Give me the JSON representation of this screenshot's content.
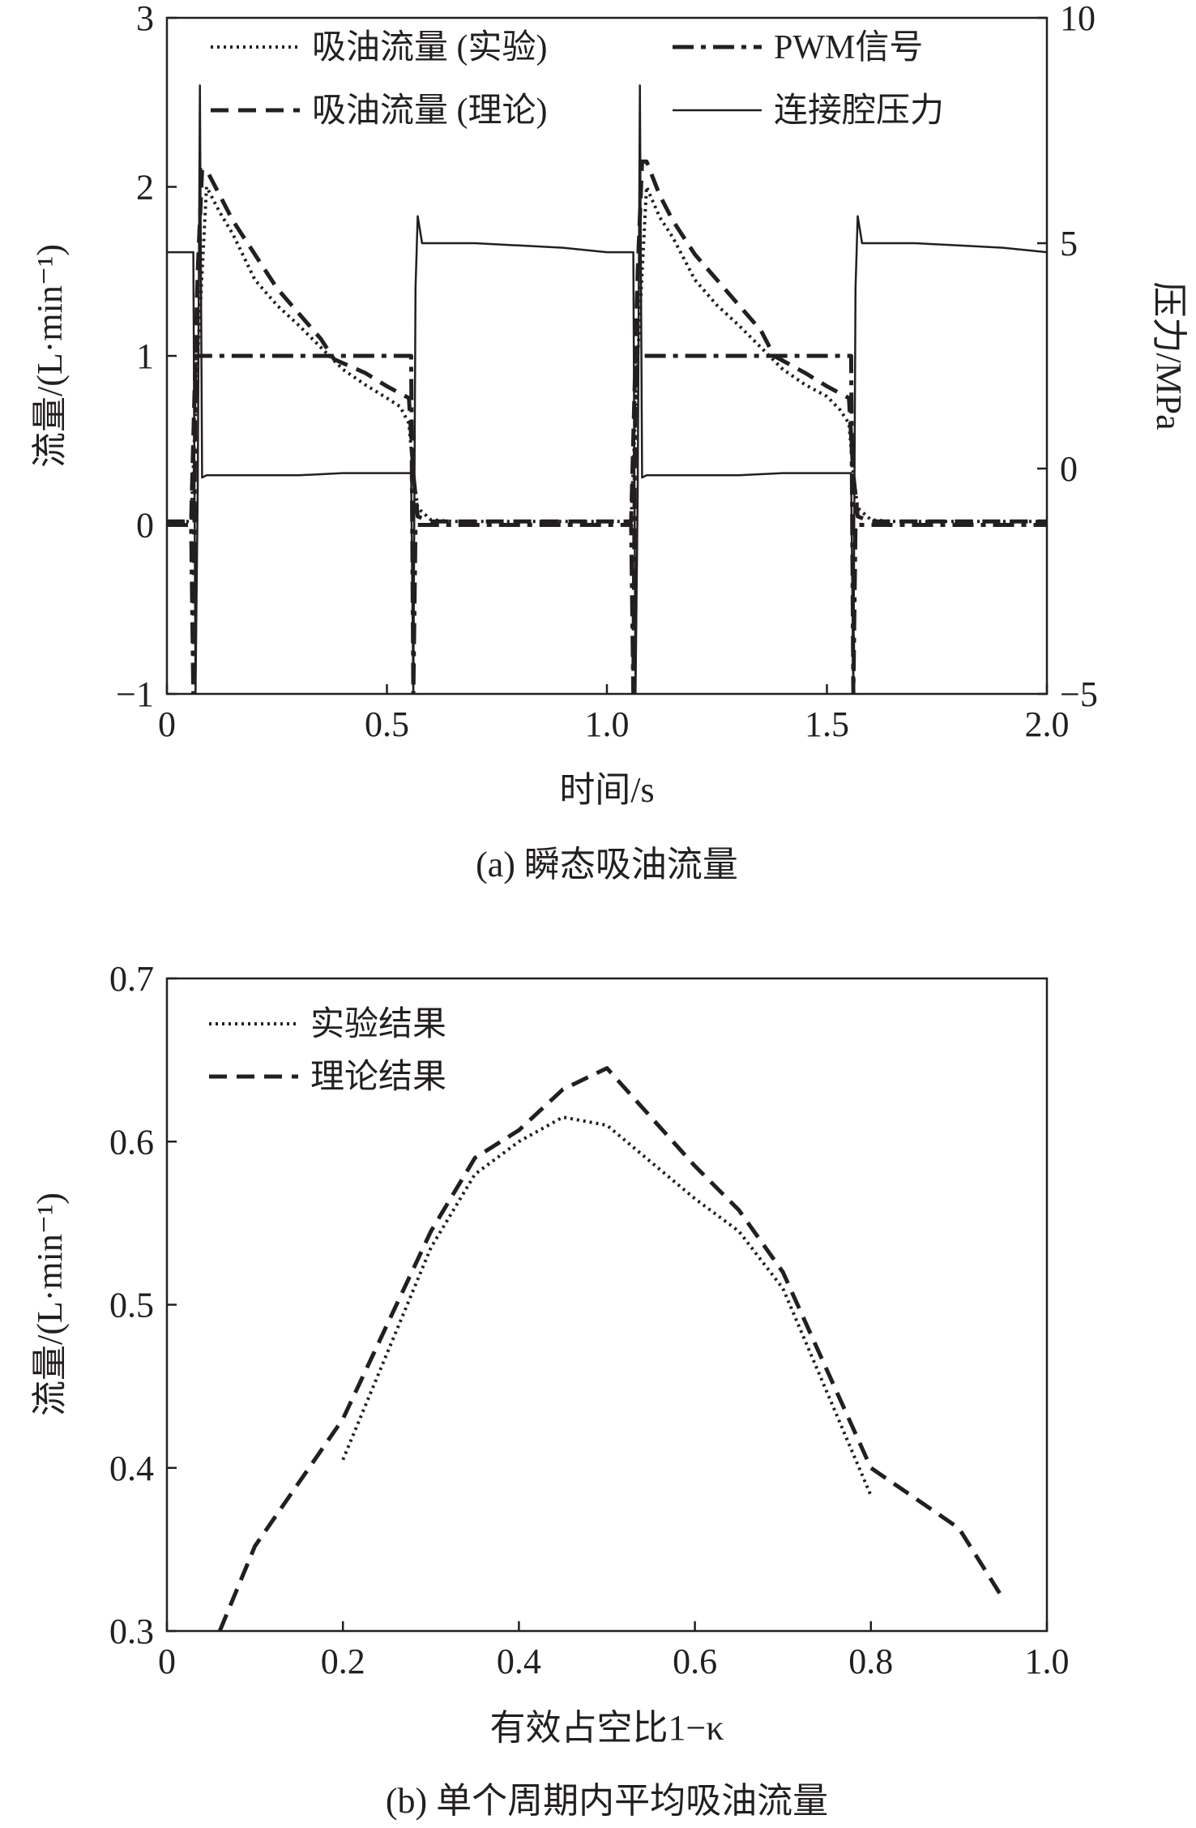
{
  "chart_data": [
    {
      "type": "line",
      "caption": "(a) 瞬态吸油流量",
      "xlabel": "时间/s",
      "ylabel": "流量/(L·min⁻¹)",
      "y2label": "压力/MPa",
      "xlim": [
        0,
        2.0
      ],
      "ylim": [
        -1,
        3
      ],
      "y2lim": [
        -5,
        10
      ],
      "xticks": [
        "0",
        "0.5",
        "1.0",
        "1.5",
        "2.0"
      ],
      "yticks": [
        "−1",
        "0",
        "1",
        "2",
        "3"
      ],
      "y2ticks": [
        "−5",
        "0",
        "5",
        "10"
      ],
      "legend_position": "top",
      "series": [
        {
          "name": "吸油流量 (实验)",
          "axis": "left",
          "style": "dotted",
          "x": [
            0.0,
            0.055,
            0.07,
            0.09,
            0.12,
            0.15,
            0.2,
            0.25,
            0.3,
            0.35,
            0.4,
            0.45,
            0.5,
            0.53,
            0.55,
            0.56,
            0.57,
            0.6,
            0.65,
            0.7,
            0.8,
            0.9,
            1.0,
            1.055,
            1.07,
            1.09,
            1.12,
            1.15,
            1.2,
            1.25,
            1.3,
            1.35,
            1.4,
            1.45,
            1.5,
            1.53,
            1.55,
            1.56,
            1.57,
            1.6,
            1.65,
            1.7,
            1.8,
            1.9,
            2.0
          ],
          "y": [
            0.02,
            0.02,
            1.0,
            2.0,
            1.85,
            1.72,
            1.45,
            1.3,
            1.18,
            1.05,
            0.92,
            0.83,
            0.75,
            0.7,
            0.6,
            0.3,
            0.1,
            0.03,
            0.02,
            0.02,
            0.02,
            0.02,
            0.02,
            0.02,
            1.0,
            2.0,
            1.82,
            1.7,
            1.45,
            1.3,
            1.18,
            1.05,
            0.92,
            0.83,
            0.76,
            0.68,
            0.6,
            0.3,
            0.1,
            0.03,
            0.02,
            0.02,
            0.02,
            0.02,
            0.02
          ]
        },
        {
          "name": "吸油流量 (理论)",
          "axis": "left",
          "style": "dashed",
          "x": [
            0.0,
            0.055,
            0.07,
            0.08,
            0.09,
            0.12,
            0.15,
            0.2,
            0.25,
            0.3,
            0.35,
            0.38,
            0.45,
            0.5,
            0.55,
            0.56,
            0.57,
            0.6,
            0.7,
            0.8,
            0.9,
            1.0,
            1.055,
            1.07,
            1.08,
            1.09,
            1.12,
            1.15,
            1.2,
            1.25,
            1.3,
            1.35,
            1.38,
            1.45,
            1.5,
            1.55,
            1.56,
            1.57,
            1.6,
            1.7,
            1.8,
            1.9,
            2.0
          ],
          "y": [
            0.02,
            0.02,
            1.5,
            2.1,
            2.1,
            1.95,
            1.8,
            1.6,
            1.4,
            1.25,
            1.1,
            0.98,
            0.9,
            0.82,
            0.75,
            0.3,
            0.05,
            0.02,
            0.02,
            0.02,
            0.02,
            0.02,
            0.02,
            1.5,
            2.15,
            2.15,
            1.95,
            1.8,
            1.6,
            1.45,
            1.3,
            1.15,
            1.0,
            0.9,
            0.82,
            0.75,
            0.3,
            0.05,
            0.02,
            0.02,
            0.02,
            0.02,
            0.02
          ]
        },
        {
          "name": "PWM信号",
          "axis": "left",
          "style": "dashdot",
          "x": [
            0.0,
            0.055,
            0.06,
            0.065,
            0.07,
            0.075,
            0.08,
            0.1,
            0.2,
            0.3,
            0.4,
            0.5,
            0.55,
            0.555,
            0.56,
            0.565,
            0.57,
            0.58,
            0.7,
            0.8,
            0.9,
            1.0,
            1.055,
            1.06,
            1.065,
            1.07,
            1.075,
            1.08,
            1.1,
            1.2,
            1.3,
            1.4,
            1.5,
            1.55,
            1.555,
            1.56,
            1.565,
            1.57,
            1.58,
            1.7,
            1.8,
            1.9,
            2.0
          ],
          "y": [
            0.0,
            0.0,
            -1.0,
            1.0,
            1.0,
            1.0,
            1.0,
            1.0,
            1.0,
            1.0,
            1.0,
            1.0,
            1.0,
            1.0,
            -1.0,
            0.0,
            0.0,
            0.0,
            0.0,
            0.0,
            0.0,
            0.0,
            0.0,
            -1.0,
            1.0,
            1.0,
            1.0,
            1.0,
            1.0,
            1.0,
            1.0,
            1.0,
            1.0,
            1.0,
            1.0,
            -1.0,
            0.0,
            0.0,
            0.0,
            0.0,
            0.0,
            0.0,
            0.0
          ]
        },
        {
          "name": "连接腔压力",
          "axis": "right",
          "style": "solid",
          "x": [
            0.0,
            0.055,
            0.06,
            0.065,
            0.07,
            0.075,
            0.08,
            0.09,
            0.2,
            0.3,
            0.4,
            0.5,
            0.55,
            0.555,
            0.56,
            0.565,
            0.57,
            0.58,
            0.6,
            0.7,
            0.8,
            0.9,
            1.0,
            1.055,
            1.06,
            1.065,
            1.07,
            1.075,
            1.08,
            1.09,
            1.2,
            1.3,
            1.4,
            1.5,
            1.55,
            1.555,
            1.56,
            1.565,
            1.57,
            1.58,
            1.6,
            1.7,
            1.8,
            1.9,
            2.0
          ],
          "y": [
            4.8,
            4.8,
            4.8,
            -5.0,
            -0.5,
            8.5,
            -0.2,
            -0.15,
            -0.15,
            -0.15,
            -0.1,
            -0.1,
            -0.1,
            -0.1,
            -5.0,
            4.0,
            5.6,
            5.0,
            5.0,
            5.0,
            4.95,
            4.9,
            4.8,
            4.8,
            4.8,
            -5.0,
            -0.5,
            8.5,
            -0.2,
            -0.15,
            -0.15,
            -0.15,
            -0.1,
            -0.1,
            -0.1,
            -0.1,
            -5.0,
            4.0,
            5.6,
            5.0,
            5.0,
            5.0,
            4.95,
            4.9,
            4.8
          ]
        }
      ]
    },
    {
      "type": "line",
      "caption": "(b) 单个周期内平均吸油流量",
      "xlabel": "有效占空比1−κ",
      "ylabel": "流量/(L·min⁻¹)",
      "xlim": [
        0,
        1.0
      ],
      "ylim": [
        0.3,
        0.7
      ],
      "xticks": [
        "0",
        "0.2",
        "0.4",
        "0.6",
        "0.8",
        "1.0"
      ],
      "yticks": [
        "0.3",
        "0.4",
        "0.5",
        "0.6",
        "0.7"
      ],
      "legend_position": "top-left",
      "series": [
        {
          "name": "实验结果",
          "style": "dotted",
          "x": [
            0.2,
            0.3,
            0.35,
            0.4,
            0.45,
            0.5,
            0.6,
            0.65,
            0.7,
            0.8
          ],
          "y": [
            0.405,
            0.535,
            0.58,
            0.6,
            0.615,
            0.61,
            0.565,
            0.545,
            0.51,
            0.383
          ]
        },
        {
          "name": "理论结果",
          "style": "dashed",
          "x": [
            0.06,
            0.1,
            0.2,
            0.3,
            0.35,
            0.4,
            0.45,
            0.5,
            0.6,
            0.65,
            0.7,
            0.8,
            0.9,
            0.95
          ],
          "y": [
            0.3,
            0.352,
            0.43,
            0.545,
            0.59,
            0.607,
            0.632,
            0.645,
            0.585,
            0.558,
            0.52,
            0.4,
            0.363,
            0.32
          ]
        }
      ]
    }
  ]
}
